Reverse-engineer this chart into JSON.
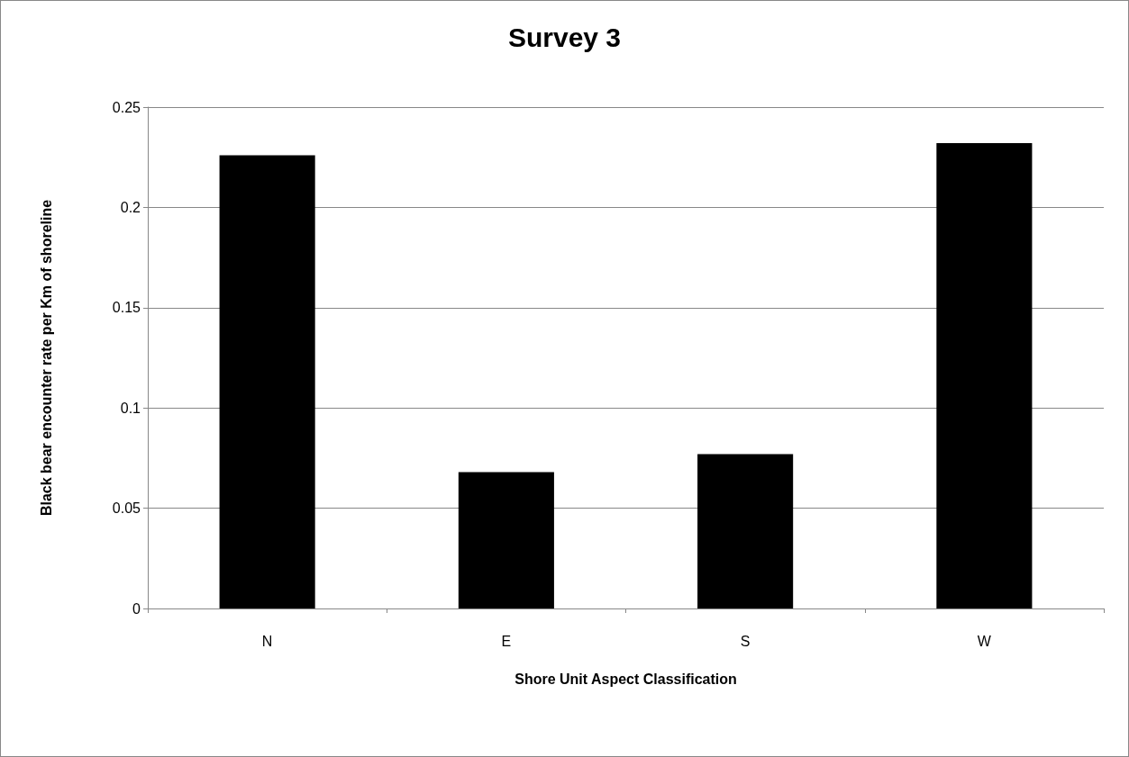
{
  "chart_data": {
    "type": "bar",
    "title": "Survey 3",
    "xlabel": "Shore Unit Aspect Classification",
    "ylabel": "Black bear encounter rate per Km of shoreline",
    "categories": [
      "N",
      "E",
      "S",
      "W"
    ],
    "values": [
      0.226,
      0.068,
      0.077,
      0.232
    ],
    "color": "#000000",
    "ylim": [
      0,
      0.25
    ],
    "yticks": [
      0,
      0.05,
      0.1,
      0.15,
      0.2,
      0.25
    ],
    "grid": "y"
  }
}
